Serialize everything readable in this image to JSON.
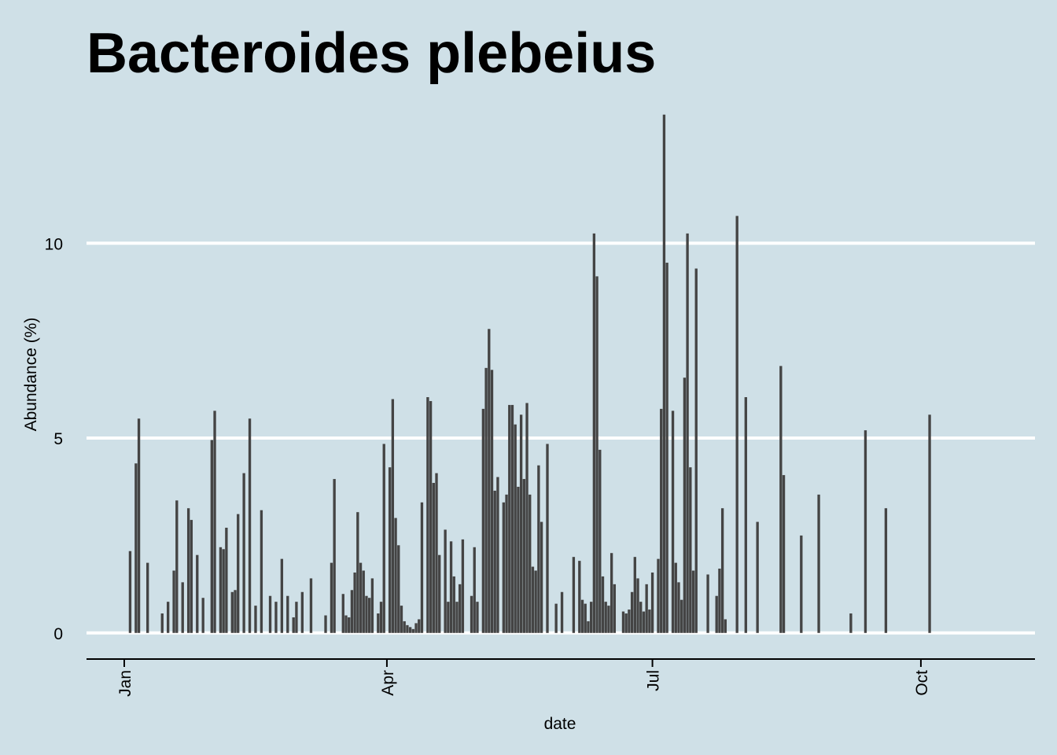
{
  "chart_data": {
    "type": "bar",
    "title": "Bacteroides plebeius",
    "xlabel": "date",
    "ylabel": "Abundance (%)",
    "x": [
      2,
      4,
      5,
      8,
      13,
      15,
      17,
      18,
      20,
      22,
      23,
      25,
      27,
      30,
      31,
      33,
      34,
      35,
      37,
      38,
      39,
      41,
      43,
      45,
      47,
      50,
      52,
      54,
      56,
      58,
      59,
      61,
      64,
      69,
      71,
      72,
      75,
      76,
      77,
      78,
      79,
      80,
      81,
      82,
      83,
      84,
      85,
      87,
      88,
      89,
      91,
      92,
      93,
      94,
      95,
      96,
      97,
      98,
      99,
      100,
      101,
      102,
      104,
      105,
      106,
      107,
      108,
      110,
      111,
      112,
      113,
      114,
      115,
      116,
      119,
      120,
      121,
      123,
      124,
      125,
      126,
      127,
      128,
      130,
      131,
      132,
      133,
      134,
      135,
      136,
      137,
      138,
      139,
      140,
      141,
      142,
      143,
      145,
      148,
      150,
      154,
      156,
      157,
      158,
      159,
      160,
      161,
      162,
      163,
      164,
      165,
      166,
      167,
      168,
      171,
      172,
      173,
      174,
      175,
      176,
      177,
      178,
      179,
      180,
      181,
      183,
      184,
      185,
      186,
      188,
      189,
      190,
      191,
      192,
      193,
      194,
      195,
      196,
      200,
      203,
      204,
      205,
      206,
      210,
      213,
      217,
      225,
      226,
      232,
      238,
      249,
      254,
      261,
      276
    ],
    "values": [
      2.1,
      4.35,
      5.5,
      1.8,
      0.5,
      0.8,
      1.6,
      3.4,
      1.3,
      3.2,
      2.9,
      2.0,
      0.9,
      4.95,
      5.7,
      2.2,
      2.15,
      2.7,
      1.05,
      1.1,
      3.05,
      4.1,
      5.5,
      0.7,
      3.15,
      0.95,
      0.8,
      1.9,
      0.95,
      0.4,
      0.8,
      1.05,
      1.4,
      0.45,
      1.8,
      3.95,
      1.0,
      0.45,
      0.4,
      1.1,
      1.55,
      3.1,
      1.8,
      1.6,
      0.95,
      0.9,
      1.4,
      0.5,
      0.8,
      4.85,
      4.25,
      6.0,
      2.95,
      2.25,
      0.7,
      0.3,
      0.2,
      0.15,
      0.1,
      0.25,
      0.35,
      3.35,
      6.05,
      5.95,
      3.85,
      4.1,
      2.0,
      2.65,
      0.8,
      2.35,
      1.45,
      0.8,
      1.25,
      2.4,
      0.95,
      2.2,
      0.8,
      5.75,
      6.8,
      7.8,
      6.75,
      3.65,
      4.0,
      3.35,
      3.55,
      5.85,
      5.85,
      5.35,
      3.75,
      5.6,
      3.95,
      5.9,
      3.55,
      1.7,
      1.6,
      4.3,
      2.85,
      4.85,
      0.75,
      1.05,
      1.95,
      1.85,
      0.85,
      0.75,
      0.3,
      0.8,
      10.25,
      9.15,
      4.7,
      1.45,
      0.8,
      0.7,
      2.05,
      1.25,
      0.55,
      0.5,
      0.6,
      1.05,
      1.95,
      1.4,
      0.8,
      0.55,
      1.25,
      0.6,
      1.55,
      1.9,
      5.75,
      13.3,
      9.5,
      5.7,
      1.8,
      1.3,
      0.85,
      6.55,
      10.25,
      4.25,
      1.6,
      9.35,
      1.5,
      0.95,
      1.65,
      3.2,
      0.35,
      10.7,
      6.05,
      2.85,
      6.85,
      4.05,
      2.5,
      3.55,
      0.5,
      5.2,
      3.2,
      5.6
    ],
    "color": "#444444",
    "xlim": [
      -12.94,
      312.1
    ],
    "xticks": [
      {
        "value": 0,
        "label": "Jan"
      },
      {
        "value": 90,
        "label": "Apr"
      },
      {
        "value": 181,
        "label": "Jul"
      },
      {
        "value": 273,
        "label": "Oct"
      }
    ],
    "ylim": [
      -0.67,
      13.9
    ],
    "yticks": [
      0,
      5,
      10
    ],
    "grid": true
  }
}
